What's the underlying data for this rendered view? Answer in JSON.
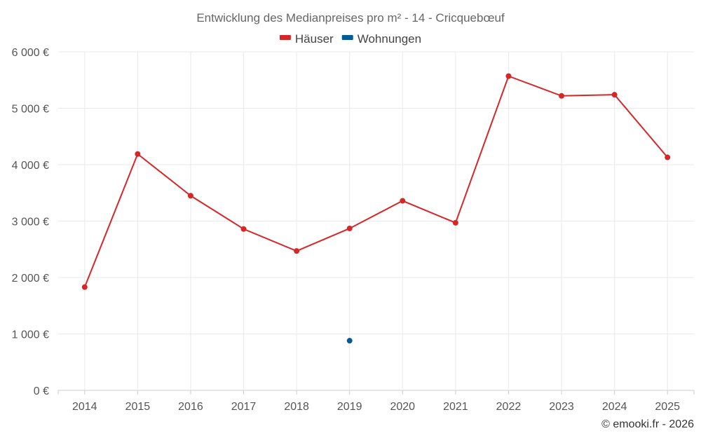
{
  "chart_data": {
    "type": "line",
    "title": "Entwicklung des Medianpreises pro m² - 14 - Cricquebœuf",
    "xlabel": "",
    "ylabel": "",
    "categories": [
      "2014",
      "2015",
      "2016",
      "2017",
      "2018",
      "2019",
      "2020",
      "2021",
      "2022",
      "2023",
      "2024",
      "2025"
    ],
    "ylim": [
      0,
      6000
    ],
    "yticks": [
      0,
      1000,
      2000,
      3000,
      4000,
      5000,
      6000
    ],
    "ytick_labels": [
      "0 €",
      "1 000 €",
      "2 000 €",
      "3 000 €",
      "4 000 €",
      "5 000 €",
      "6 000 €"
    ],
    "grid": true,
    "legend_position": "top-center",
    "series": [
      {
        "name": "Häuser",
        "color": "#d62728",
        "values": [
          1830,
          4190,
          3450,
          2860,
          2470,
          2870,
          3360,
          2970,
          5570,
          5220,
          5240,
          4130
        ]
      },
      {
        "name": "Wohnungen",
        "color": "#005b96",
        "values": [
          null,
          null,
          null,
          null,
          null,
          880,
          null,
          null,
          null,
          null,
          null,
          null
        ]
      }
    ]
  },
  "credit": "© emooki.fr - 2026"
}
